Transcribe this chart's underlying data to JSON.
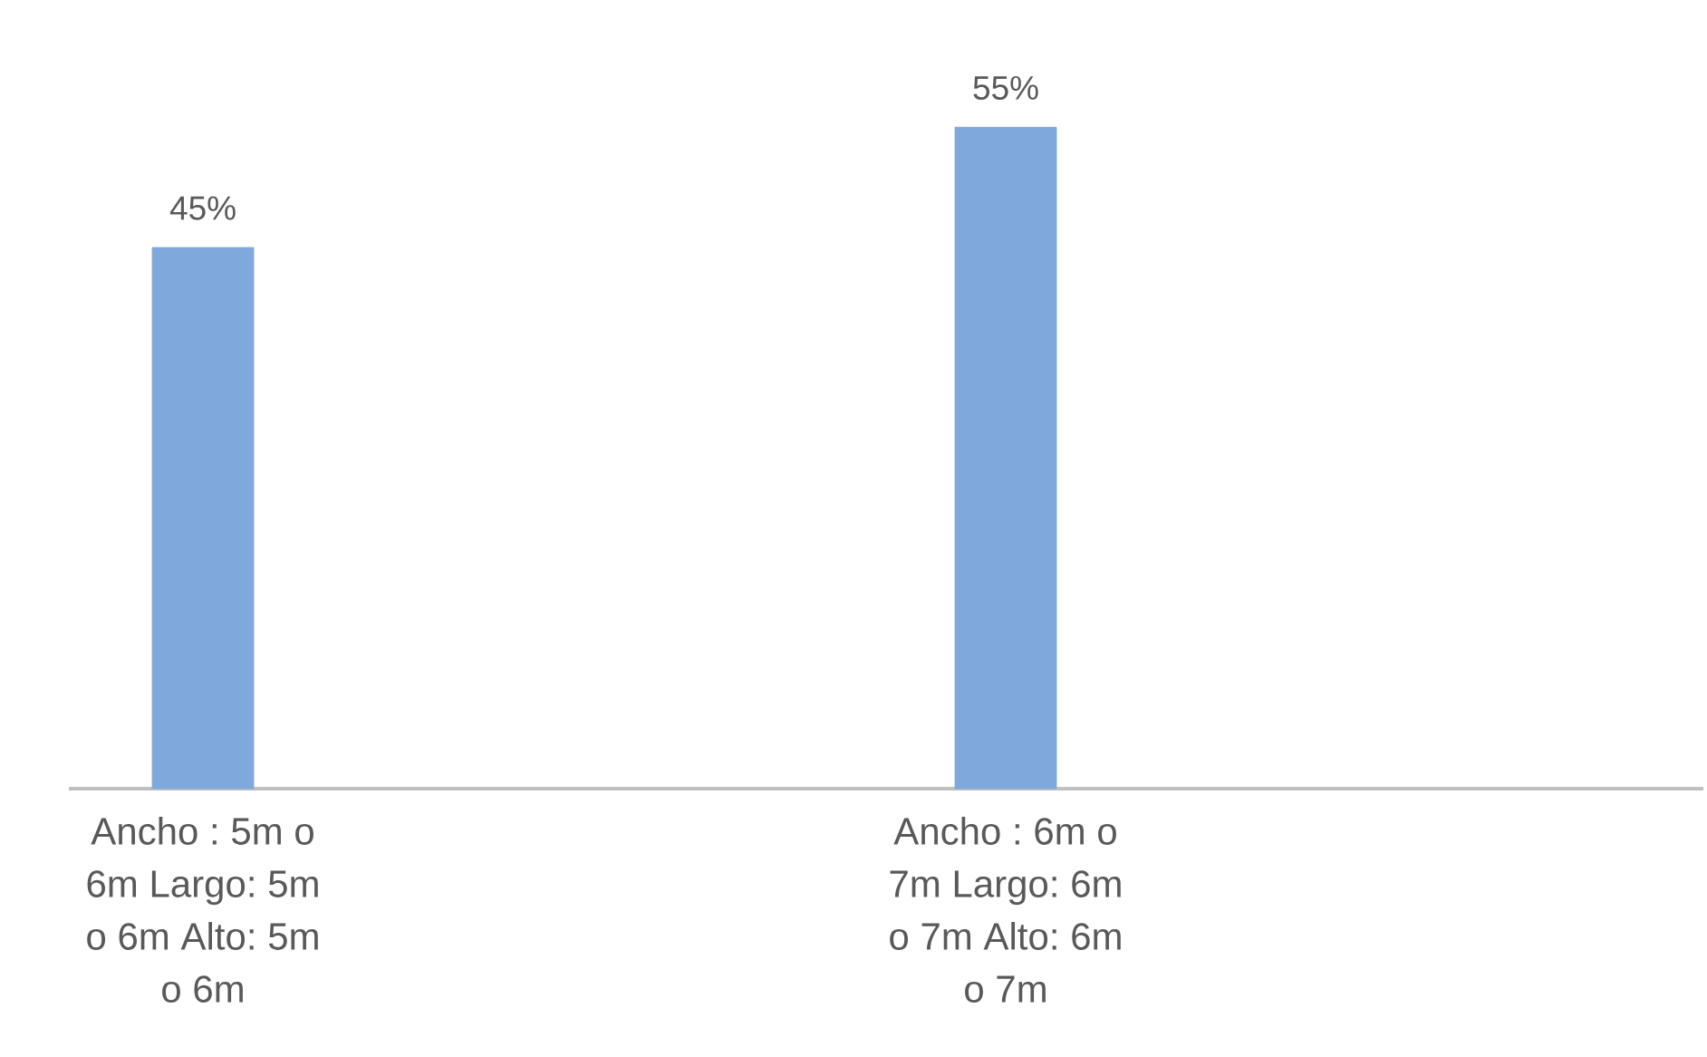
{
  "chart_data": {
    "type": "bar",
    "categories": [
      "Ancho : 5m o 6m Largo: 5m o 6m Alto: 5m o 6m",
      "Ancho : 6m o 7m Largo: 6m o 7m Alto: 6m o 7m"
    ],
    "values": [
      45,
      55
    ],
    "value_labels": [
      "45%",
      "55%"
    ],
    "color": "#7fa8dc"
  }
}
